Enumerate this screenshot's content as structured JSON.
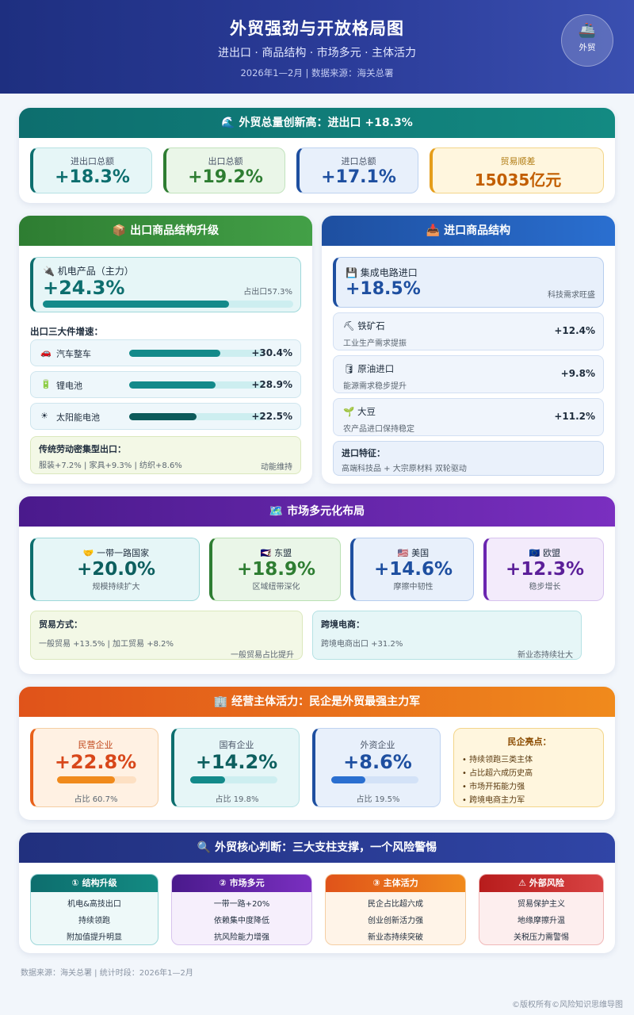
{
  "header": {
    "title": "外贸强劲与开放格局图",
    "subtitle": "进出口 · 商品结构 · 市场多元 · 主体活力",
    "meta": "2026年1—2月 | 数据来源：海关总署",
    "badge_icon": "ship-icon",
    "badge_text": "外贸"
  },
  "totals": {
    "title": "🌊 外贸总量创新高：进出口 +18.3%",
    "items": [
      {
        "label": "进出口总额",
        "value": "+18.3%"
      },
      {
        "label": "出口总额",
        "value": "+19.2%"
      },
      {
        "label": "进口总额",
        "value": "+17.1%"
      },
      {
        "label": "贸易顺差",
        "value": "15035亿元"
      }
    ]
  },
  "export": {
    "title": "📦 出口商品结构升级",
    "main_label": "🔌 机电产品（主力）",
    "main_value": "+24.3%",
    "main_share": "占出口57.3%",
    "main_share_pct": 57.3,
    "three_title": "出口三大件增速：",
    "three": [
      {
        "icon": "🚗",
        "label": "汽车整车",
        "value": "+30.4%",
        "pct": 30.4
      },
      {
        "icon": "🔋",
        "label": "锂电池",
        "value": "+28.9%",
        "pct": 28.9
      },
      {
        "icon": "☀",
        "label": "太阳能电池",
        "value": "+22.5%",
        "pct": 22.5
      }
    ],
    "labor_title": "传统劳动密集型出口：",
    "labor_text": "服装+7.2% | 家具+9.3% | 纺织+8.6%",
    "labor_note": "动能维持"
  },
  "import": {
    "title": "📥 进口商品结构",
    "main_label": "💾 集成电路进口",
    "main_value": "+18.5%",
    "main_note": "科技需求旺盛",
    "items": [
      {
        "label": "⛏ 铁矿石",
        "sub": "工业生产需求提振",
        "value": "+12.4%"
      },
      {
        "label": "🛢 原油进口",
        "sub": "能源需求稳步提升",
        "value": "+9.8%"
      },
      {
        "label": "🌱 大豆",
        "sub": "农产品进口保持稳定",
        "value": "+11.2%"
      }
    ],
    "feature_title": "进口特征：",
    "feature_text": "高端科技品 + 大宗原材料 双轮驱动"
  },
  "market": {
    "title": "🗺️ 市场多元化布局",
    "items": [
      {
        "label": "🤝 一带一路国家",
        "value": "+20.0%",
        "sub": "规模持续扩大"
      },
      {
        "label": "🇦🇸 东盟",
        "value": "+18.9%",
        "sub": "区域纽带深化"
      },
      {
        "label": "🇺🇸 美国",
        "value": "+14.6%",
        "sub": "摩擦中韧性"
      },
      {
        "label": "🇪🇺 欧盟",
        "value": "+12.3%",
        "sub": "稳步增长"
      }
    ],
    "trade_title": "贸易方式：",
    "trade_text": "一般贸易 +13.5% | 加工贸易 +8.2%",
    "trade_note": "一般贸易占比提升",
    "ecom_title": "跨境电商：",
    "ecom_text": "跨境电商出口 +31.2%",
    "ecom_note": "新业态持续壮大"
  },
  "entity": {
    "title": "🏢 经营主体活力：民企是外贸最强主力军",
    "items": [
      {
        "label": "民营企业",
        "value": "+22.8%",
        "share": "占比 60.7%",
        "pct": 60.7
      },
      {
        "label": "国有企业",
        "value": "+14.2%",
        "share": "占比 19.8%",
        "pct": 19.8
      },
      {
        "label": "外资企业",
        "value": "+8.6%",
        "share": "占比 19.5%",
        "pct": 19.5
      }
    ],
    "highlight_title": "民企亮点：",
    "highlights": [
      "• 持续领跑三类主体",
      "• 占比超六成历史高",
      "• 市场开拓能力强",
      "• 跨境电商主力军"
    ]
  },
  "judge": {
    "title": "🔍 外贸核心判断：三大支柱支撑，一个风险警惕",
    "columns": [
      {
        "head": "① 结构升级",
        "lines": [
          "机电&高技出口",
          "持续领跑",
          "附加值提升明显"
        ]
      },
      {
        "head": "② 市场多元",
        "lines": [
          "一带一路+20%",
          "依赖集中度降低",
          "抗风险能力增强"
        ]
      },
      {
        "head": "③ 主体活力",
        "lines": [
          "民企占比超六成",
          "创业创新活力强",
          "新业态持续突破"
        ]
      },
      {
        "head": "⚠ 外部风险",
        "lines": [
          "贸易保护主义",
          "地缘摩擦升温",
          "关税压力需警惕"
        ]
      }
    ]
  },
  "footer": {
    "source": "数据来源：海关总署 | 统计时段：2026年1—2月",
    "copyright": "©版权所有©风险知识思维导图"
  },
  "colors": {
    "teal": "#138a82",
    "green": "#2e7d32",
    "blue": "#1e4fa0",
    "purple": "#6a25b0",
    "orange": "#e8611a",
    "red": "#c62828",
    "gold": "#c77a00"
  }
}
